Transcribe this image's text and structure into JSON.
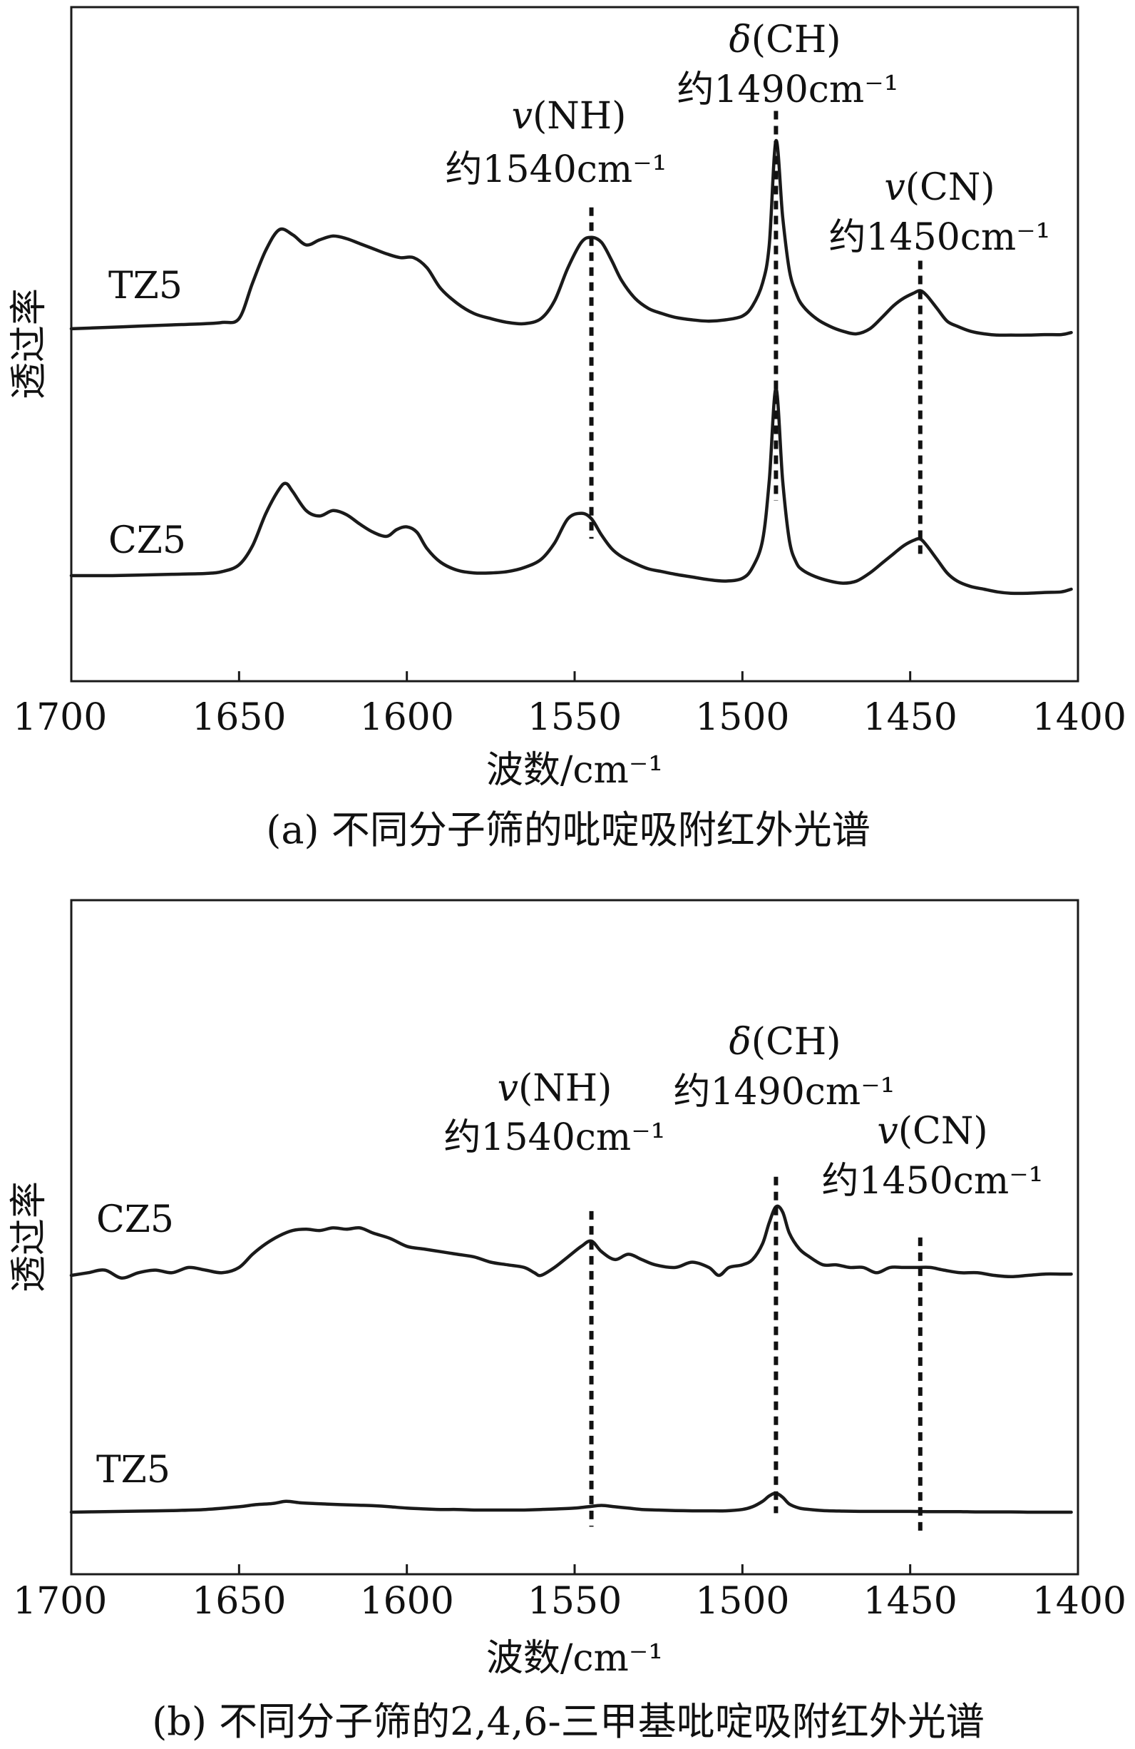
{
  "chart_data": [
    {
      "type": "line",
      "caption": "(a) 不同分子筛的吡啶吸附红外光谱",
      "xlabel": "波数/cm⁻¹",
      "ylabel": "透过率",
      "xlim": [
        1700,
        1400
      ],
      "xticks": [
        "1700",
        "1650",
        "1600",
        "1550",
        "1500",
        "1450",
        "1400"
      ],
      "grid": false,
      "series": [
        {
          "name": "TZ5",
          "x": [
            1700,
            1690,
            1680,
            1670,
            1660,
            1655,
            1650,
            1646,
            1642,
            1638,
            1634,
            1630,
            1626,
            1622,
            1618,
            1614,
            1610,
            1606,
            1602,
            1598,
            1594,
            1590,
            1585,
            1580,
            1575,
            1570,
            1565,
            1560,
            1556,
            1552,
            1548,
            1545,
            1542,
            1539,
            1536,
            1532,
            1528,
            1524,
            1520,
            1515,
            1510,
            1505,
            1500,
            1497,
            1494,
            1492,
            1490,
            1488,
            1486,
            1484,
            1482,
            1478,
            1474,
            1470,
            1466,
            1462,
            1458,
            1455,
            1452,
            1449,
            1447,
            1445,
            1442,
            1439,
            1436,
            1432,
            1428,
            1424,
            1420,
            1415,
            1410,
            1405,
            1402
          ],
          "y": [
            0.02,
            0.025,
            0.03,
            0.035,
            0.04,
            0.045,
            0.06,
            0.2,
            0.33,
            0.41,
            0.39,
            0.35,
            0.37,
            0.385,
            0.375,
            0.355,
            0.335,
            0.315,
            0.3,
            0.3,
            0.26,
            0.18,
            0.12,
            0.08,
            0.06,
            0.045,
            0.04,
            0.06,
            0.13,
            0.26,
            0.36,
            0.38,
            0.36,
            0.29,
            0.21,
            0.14,
            0.1,
            0.08,
            0.065,
            0.055,
            0.05,
            0.055,
            0.07,
            0.11,
            0.2,
            0.35,
            0.76,
            0.46,
            0.25,
            0.16,
            0.11,
            0.06,
            0.03,
            0.01,
            0.0,
            0.02,
            0.07,
            0.11,
            0.14,
            0.16,
            0.17,
            0.15,
            0.1,
            0.05,
            0.03,
            0.01,
            0.0,
            -0.005,
            -0.005,
            -0.005,
            -0.003,
            -0.003,
            0.005
          ]
        },
        {
          "name": "CZ5",
          "x": [
            1700,
            1690,
            1680,
            1670,
            1660,
            1655,
            1650,
            1646,
            1642,
            1638,
            1636,
            1634,
            1630,
            1626,
            1622,
            1618,
            1614,
            1610,
            1606,
            1603,
            1600,
            1597,
            1594,
            1590,
            1585,
            1580,
            1575,
            1570,
            1565,
            1560,
            1556,
            1552,
            1548,
            1545,
            1542,
            1539,
            1536,
            1532,
            1528,
            1524,
            1520,
            1515,
            1510,
            1505,
            1500,
            1497,
            1494,
            1492,
            1490,
            1488,
            1486,
            1484,
            1482,
            1478,
            1474,
            1470,
            1466,
            1462,
            1458,
            1455,
            1452,
            1449,
            1447,
            1445,
            1442,
            1439,
            1436,
            1432,
            1428,
            1424,
            1420,
            1415,
            1410,
            1405,
            1402
          ],
          "y": [
            0.05,
            0.05,
            0.052,
            0.055,
            0.058,
            0.065,
            0.09,
            0.16,
            0.28,
            0.37,
            0.39,
            0.36,
            0.29,
            0.27,
            0.29,
            0.275,
            0.24,
            0.21,
            0.195,
            0.22,
            0.23,
            0.21,
            0.15,
            0.1,
            0.07,
            0.06,
            0.06,
            0.065,
            0.08,
            0.11,
            0.17,
            0.26,
            0.28,
            0.26,
            0.2,
            0.15,
            0.12,
            0.095,
            0.075,
            0.065,
            0.055,
            0.045,
            0.035,
            0.03,
            0.04,
            0.08,
            0.18,
            0.4,
            0.74,
            0.4,
            0.18,
            0.1,
            0.07,
            0.045,
            0.03,
            0.022,
            0.03,
            0.06,
            0.1,
            0.13,
            0.16,
            0.18,
            0.185,
            0.16,
            0.11,
            0.06,
            0.03,
            0.01,
            0.0,
            -0.01,
            -0.015,
            -0.015,
            -0.012,
            -0.01,
            0.0
          ]
        }
      ],
      "markers": [
        {
          "x": 1545,
          "y_from": 0.38,
          "y_to": 0.26
        },
        {
          "x": 1490,
          "y_from": 0.76,
          "y_to": 0.4
        },
        {
          "x": 1447,
          "y_from": 0.17,
          "y_to": 0.185
        }
      ],
      "annotations": [
        {
          "symbol": "v",
          "group": "(NH)",
          "text": "约1540cm⁻¹"
        },
        {
          "symbol": "δ",
          "group": "(CH)",
          "text": "约1490cm⁻¹"
        },
        {
          "symbol": "v",
          "group": "(CN)",
          "text": "约1450cm⁻¹"
        }
      ]
    },
    {
      "type": "line",
      "caption": "(b) 不同分子筛的2,4,6-三甲基吡啶吸附红外光谱",
      "xlabel": "波数/cm⁻¹",
      "ylabel": "透过率",
      "xlim": [
        1700,
        1400
      ],
      "xticks": [
        "1700",
        "1650",
        "1600",
        "1550",
        "1500",
        "1450",
        "1400"
      ],
      "grid": false,
      "series": [
        {
          "name": "CZ5",
          "x": [
            1700,
            1695,
            1690,
            1685,
            1680,
            1675,
            1670,
            1665,
            1660,
            1655,
            1650,
            1646,
            1642,
            1638,
            1634,
            1630,
            1626,
            1622,
            1618,
            1614,
            1610,
            1605,
            1600,
            1595,
            1590,
            1585,
            1580,
            1575,
            1570,
            1565,
            1562,
            1560,
            1556,
            1552,
            1548,
            1545,
            1542,
            1538,
            1534,
            1530,
            1526,
            1520,
            1515,
            1510,
            1507,
            1504,
            1500,
            1497,
            1494,
            1492,
            1490,
            1488,
            1486,
            1483,
            1480,
            1476,
            1472,
            1468,
            1464,
            1460,
            1456,
            1452,
            1448,
            1444,
            1440,
            1435,
            1430,
            1425,
            1420,
            1415,
            1410,
            1405,
            1402
          ],
          "y": [
            0.0,
            0.01,
            0.02,
            -0.01,
            0.01,
            0.02,
            0.01,
            0.03,
            0.02,
            0.01,
            0.03,
            0.08,
            0.12,
            0.15,
            0.17,
            0.175,
            0.17,
            0.18,
            0.175,
            0.18,
            0.16,
            0.14,
            0.11,
            0.1,
            0.09,
            0.08,
            0.07,
            0.05,
            0.04,
            0.03,
            0.01,
            0.0,
            0.03,
            0.07,
            0.11,
            0.13,
            0.09,
            0.06,
            0.08,
            0.06,
            0.04,
            0.03,
            0.05,
            0.03,
            0.0,
            0.03,
            0.04,
            0.06,
            0.12,
            0.2,
            0.26,
            0.24,
            0.16,
            0.1,
            0.07,
            0.04,
            0.04,
            0.03,
            0.03,
            0.01,
            0.03,
            0.03,
            0.03,
            0.03,
            0.02,
            0.01,
            0.01,
            0.0,
            -0.005,
            0.0,
            0.005,
            0.005,
            0.005
          ]
        },
        {
          "name": "TZ5",
          "x": [
            1700,
            1690,
            1680,
            1670,
            1660,
            1650,
            1645,
            1640,
            1636,
            1632,
            1628,
            1624,
            1620,
            1615,
            1610,
            1605,
            1600,
            1595,
            1590,
            1585,
            1580,
            1575,
            1570,
            1565,
            1560,
            1555,
            1550,
            1546,
            1542,
            1538,
            1534,
            1530,
            1525,
            1520,
            1515,
            1510,
            1505,
            1500,
            1497,
            1494,
            1492,
            1490,
            1488,
            1486,
            1483,
            1480,
            1476,
            1470,
            1465,
            1460,
            1455,
            1450,
            1445,
            1440,
            1435,
            1430,
            1425,
            1420,
            1415,
            1410,
            1405,
            1402
          ],
          "y": [
            0.0,
            0.002,
            0.004,
            0.006,
            0.01,
            0.02,
            0.028,
            0.032,
            0.04,
            0.035,
            0.032,
            0.03,
            0.028,
            0.026,
            0.024,
            0.02,
            0.015,
            0.012,
            0.01,
            0.01,
            0.008,
            0.008,
            0.008,
            0.008,
            0.01,
            0.012,
            0.015,
            0.02,
            0.025,
            0.02,
            0.015,
            0.01,
            0.008,
            0.006,
            0.005,
            0.005,
            0.005,
            0.01,
            0.02,
            0.04,
            0.06,
            0.07,
            0.055,
            0.03,
            0.015,
            0.01,
            0.006,
            0.004,
            0.003,
            0.003,
            0.003,
            0.003,
            0.002,
            0.002,
            0.002,
            0.001,
            0.001,
            0.001,
            0.0,
            0.0,
            0.0,
            0.0
          ]
        }
      ],
      "markers": [
        {
          "x": 1545,
          "y_from": 0.13,
          "y_to": 0.02
        },
        {
          "x": 1490,
          "y_from": 0.26,
          "y_to": 0.07
        },
        {
          "x": 1447,
          "y_from": 0.03,
          "y_to": 0.003
        }
      ],
      "annotations": [
        {
          "symbol": "v",
          "group": "(NH)",
          "text": "约1540cm⁻¹"
        },
        {
          "symbol": "δ",
          "group": "(CH)",
          "text": "约1490cm⁻¹"
        },
        {
          "symbol": "v",
          "group": "(CN)",
          "text": "约1450cm⁻¹"
        }
      ]
    }
  ]
}
